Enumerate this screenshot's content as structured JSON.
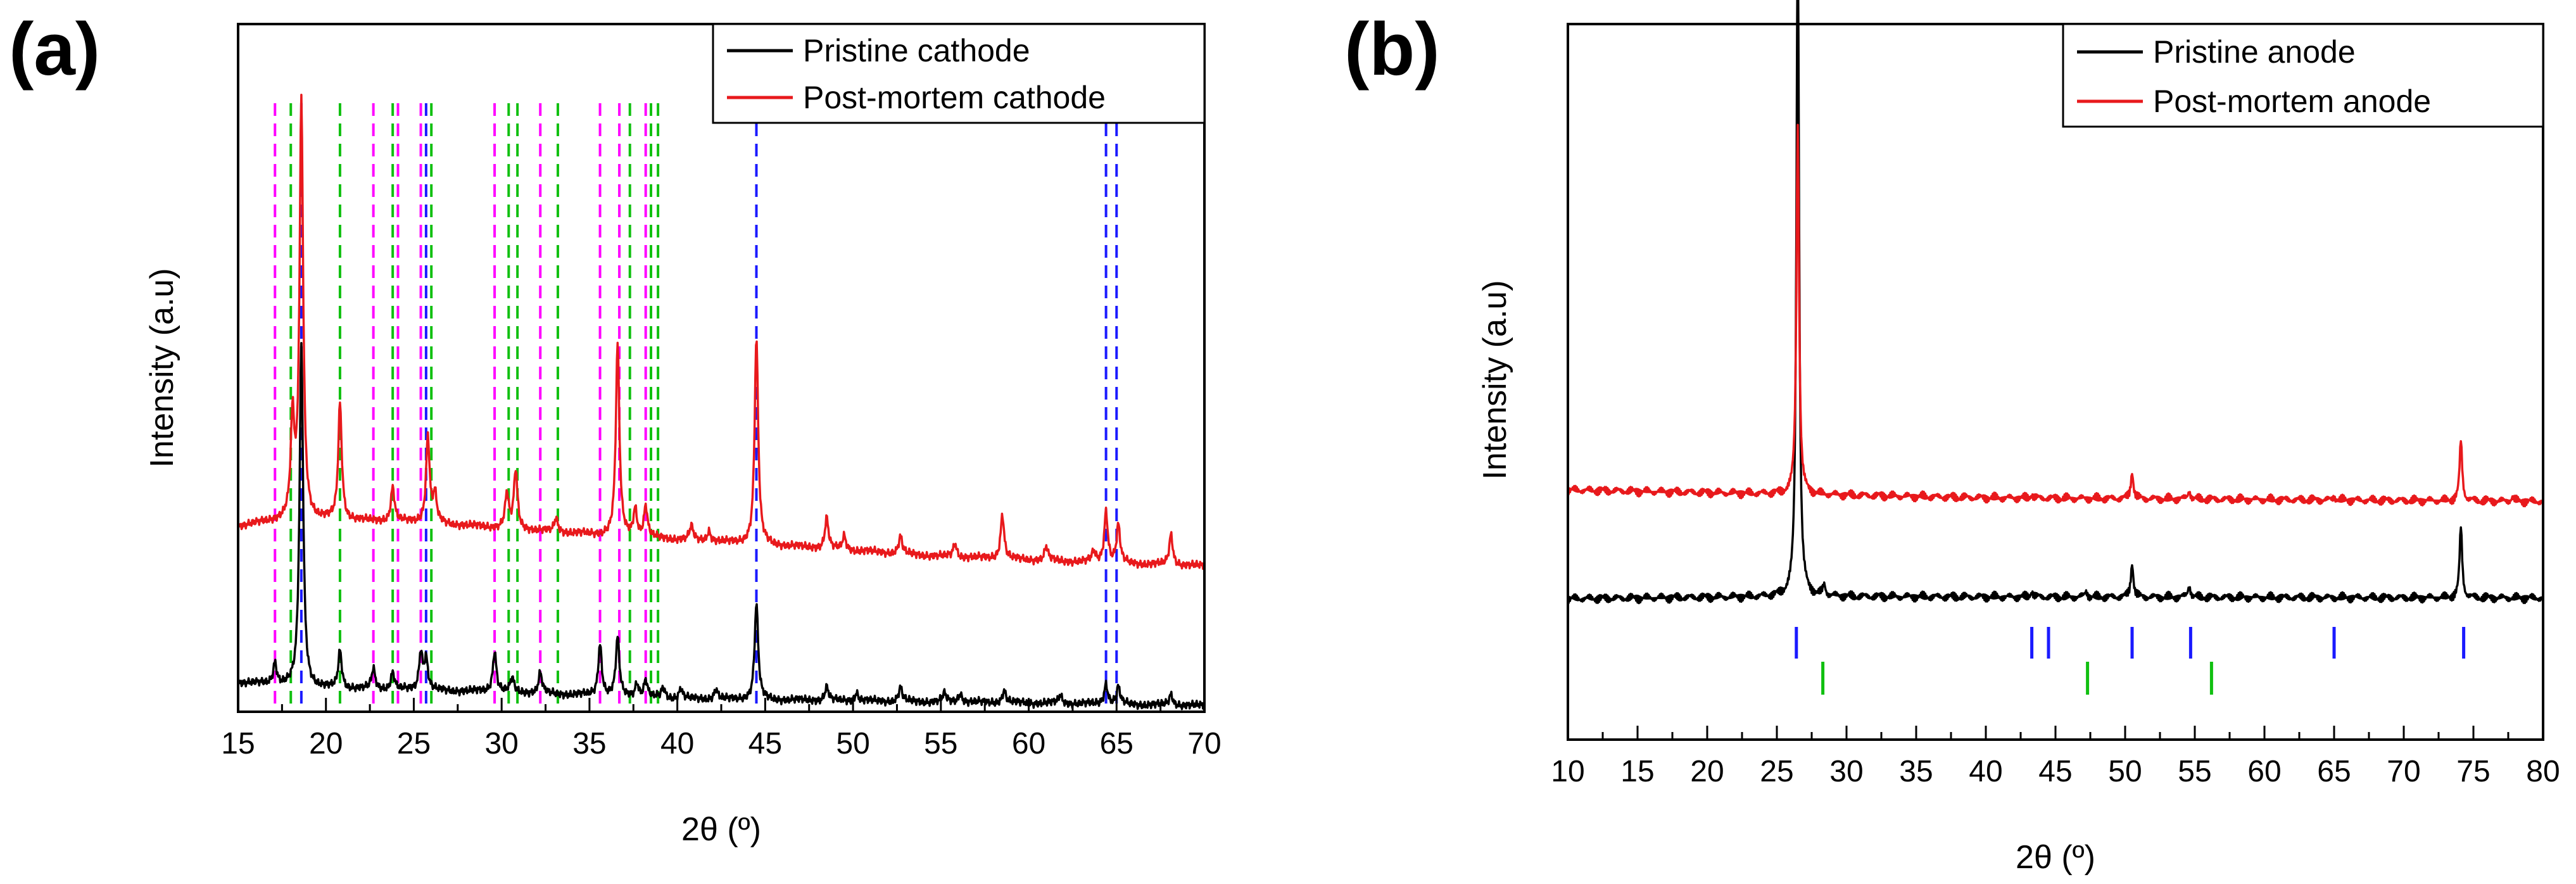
{
  "chart_data": [
    {
      "type": "line",
      "panel_label": "(a)",
      "xlabel": "2θ (º)",
      "ylabel": "Intensity (a.u)",
      "xlim": [
        15,
        70
      ],
      "ylim": [
        0,
        100
      ],
      "xticks": [
        15,
        20,
        25,
        30,
        35,
        40,
        45,
        50,
        55,
        60,
        65,
        70
      ],
      "legend_position": "top-right",
      "series": [
        {
          "name": "Pristine cathode",
          "color": "#000000",
          "baseline": [
            [
              15,
              4.3
            ],
            [
              20,
              3.4
            ],
            [
              30,
              2.9
            ],
            [
              40,
              1.9
            ],
            [
              50,
              1.6
            ],
            [
              60,
              1.3
            ],
            [
              70,
              0.9
            ]
          ],
          "peaks": [
            [
              17.1,
              3.2
            ],
            [
              18.6,
              50
            ],
            [
              20.8,
              5.5
            ],
            [
              22.7,
              3
            ],
            [
              23.8,
              2.5
            ],
            [
              25.4,
              5.5
            ],
            [
              25.7,
              4.5
            ],
            [
              29.6,
              6
            ],
            [
              30.6,
              2
            ],
            [
              32.2,
              3
            ],
            [
              35.6,
              7.5
            ],
            [
              36.6,
              8.5
            ],
            [
              37.7,
              2
            ],
            [
              38.2,
              2.5
            ],
            [
              39.2,
              1.5
            ],
            [
              40.2,
              1.5
            ],
            [
              42.2,
              1.5
            ],
            [
              44.5,
              14
            ],
            [
              48.5,
              2
            ],
            [
              50.2,
              1.2
            ],
            [
              52.7,
              2
            ],
            [
              55.2,
              1.2
            ],
            [
              56.1,
              1.3
            ],
            [
              58.6,
              1.8
            ],
            [
              61.8,
              1.2
            ],
            [
              64.4,
              3
            ],
            [
              65.1,
              2.5
            ],
            [
              68.1,
              1.6
            ]
          ]
        },
        {
          "name": "Post-mortem cathode",
          "color": "#e8191c",
          "baseline": [
            [
              15,
              27
            ],
            [
              18,
              28
            ],
            [
              25,
              27.6
            ],
            [
              35,
              25.8
            ],
            [
              45,
              24.3
            ],
            [
              55,
              22.6
            ],
            [
              65,
              21.6
            ],
            [
              70,
              21.2
            ]
          ],
          "peaks": [
            [
              18.1,
              14
            ],
            [
              18.6,
              61
            ],
            [
              20.8,
              17
            ],
            [
              23.8,
              5
            ],
            [
              25.8,
              12.5
            ],
            [
              26.2,
              4
            ],
            [
              30.3,
              5
            ],
            [
              30.8,
              8.5
            ],
            [
              33.1,
              2
            ],
            [
              36.6,
              28
            ],
            [
              37.6,
              4
            ],
            [
              38.2,
              4.5
            ],
            [
              40.8,
              2
            ],
            [
              41.8,
              1.5
            ],
            [
              44.5,
              30
            ],
            [
              48.5,
              4.5
            ],
            [
              49.5,
              2
            ],
            [
              52.7,
              2.5
            ],
            [
              55.8,
              2
            ],
            [
              58.5,
              6.5
            ],
            [
              61.0,
              2
            ],
            [
              63.7,
              1.5
            ],
            [
              64.4,
              7.5
            ],
            [
              65.1,
              5.5
            ],
            [
              68.1,
              4.5
            ]
          ]
        }
      ],
      "reference_lines": [
        {
          "color": "#ff00ff",
          "positions": [
            17.1,
            22.7,
            24.1,
            25.4,
            29.6,
            32.2,
            35.6,
            36.7,
            38.2
          ]
        },
        {
          "color": "#10c010",
          "positions": [
            18.0,
            20.8,
            23.8,
            26.0,
            30.4,
            30.9,
            33.2,
            37.3,
            38.5,
            38.9
          ]
        },
        {
          "color": "#1a1aff",
          "positions": [
            18.6,
            25.7,
            44.5,
            64.4,
            65.0
          ]
        }
      ]
    },
    {
      "type": "line",
      "panel_label": "(b)",
      "xlabel": "2θ (º)",
      "ylabel": "Intensity (a.u)",
      "xlim": [
        10,
        80
      ],
      "ylim": [
        0,
        100
      ],
      "xticks": [
        10,
        15,
        20,
        25,
        30,
        35,
        40,
        45,
        50,
        55,
        60,
        65,
        70,
        75,
        80
      ],
      "legend_position": "top-right",
      "series": [
        {
          "name": "Pristine anode",
          "color": "#000000",
          "baseline": [
            [
              10,
              19.7
            ],
            [
              26,
              20
            ],
            [
              80,
              19.8
            ]
          ],
          "peaks": [
            [
              26.5,
              94.8
            ],
            [
              28.4,
              1.5
            ],
            [
              43.3,
              0.8
            ],
            [
              47.2,
              0.8
            ],
            [
              50.5,
              4.8
            ],
            [
              54.6,
              1.7
            ],
            [
              74.1,
              10
            ]
          ]
        },
        {
          "name": "Post-mortem anode",
          "color": "#e8191c",
          "baseline": [
            [
              10,
              34.9
            ],
            [
              26,
              34.3
            ],
            [
              40,
              33.8
            ],
            [
              80,
              33.3
            ]
          ],
          "peaks": [
            [
              26.5,
              52
            ],
            [
              43.3,
              0.5
            ],
            [
              50.5,
              3.8
            ],
            [
              54.6,
              1.2
            ],
            [
              65.0,
              0.5
            ],
            [
              74.1,
              8.5
            ],
            [
              77.8,
              0.6
            ]
          ]
        }
      ],
      "reference_ticks": [
        {
          "color": "#1a1aff",
          "row": "upper",
          "positions": [
            26.4,
            43.3,
            44.5,
            50.5,
            54.7,
            65.0,
            74.3
          ]
        },
        {
          "color": "#10c010",
          "row": "lower",
          "positions": [
            28.3,
            47.3,
            56.2
          ]
        }
      ]
    }
  ]
}
